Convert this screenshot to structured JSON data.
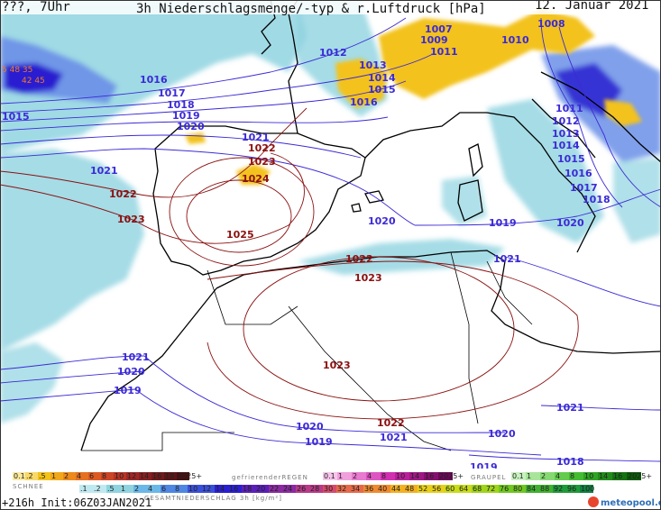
{
  "header": {
    "left": "???, 7Uhr",
    "title": "3h Niederschlagsmenge/-typ & r.Luftdruck [hPa]",
    "date": "12. Januar 2021"
  },
  "colors": {
    "precip_light": "#8fd3e0",
    "precip_blue": "#6a8fe8",
    "precip_dark": "#2a1fd0",
    "snow_yellow": "#f3c21b",
    "isobar_low": "#3b2ad6",
    "isobar_high": "#8b1010",
    "coast": "#000000"
  },
  "isobars": [
    {
      "v": "1012",
      "t": "lo"
    },
    {
      "v": "1013",
      "t": "lo"
    },
    {
      "v": "1014",
      "t": "lo"
    },
    {
      "v": "1015",
      "t": "lo"
    },
    {
      "v": "1016",
      "t": "lo"
    },
    {
      "v": "1007",
      "t": "lo"
    },
    {
      "v": "1009",
      "t": "lo"
    },
    {
      "v": "1011",
      "t": "lo"
    },
    {
      "v": "1010",
      "t": "lo"
    },
    {
      "v": "1008",
      "t": "lo"
    },
    {
      "v": "1016",
      "t": "lo"
    },
    {
      "v": "1017",
      "t": "lo"
    },
    {
      "v": "1018",
      "t": "lo"
    },
    {
      "v": "1019",
      "t": "lo"
    },
    {
      "v": "1020",
      "t": "lo"
    },
    {
      "v": "1015",
      "t": "lo"
    },
    {
      "v": "1021",
      "t": "lo"
    },
    {
      "v": "1022",
      "t": "hi"
    },
    {
      "v": "1023",
      "t": "hi"
    },
    {
      "v": "1024",
      "t": "hi"
    },
    {
      "v": "1025",
      "t": "hi"
    },
    {
      "v": "1021",
      "t": "lo"
    },
    {
      "v": "1022",
      "t": "hi"
    },
    {
      "v": "1023",
      "t": "hi"
    },
    {
      "v": "1020",
      "t": "lo"
    },
    {
      "v": "1019",
      "t": "lo"
    },
    {
      "v": "1020",
      "t": "lo"
    },
    {
      "v": "1021",
      "t": "lo"
    },
    {
      "v": "1011",
      "t": "lo"
    },
    {
      "v": "1012",
      "t": "lo"
    },
    {
      "v": "1013",
      "t": "lo"
    },
    {
      "v": "1014",
      "t": "lo"
    },
    {
      "v": "1015",
      "t": "lo"
    },
    {
      "v": "1016",
      "t": "lo"
    },
    {
      "v": "1017",
      "t": "lo"
    },
    {
      "v": "1018",
      "t": "lo"
    },
    {
      "v": "1022",
      "t": "hi"
    },
    {
      "v": "1023",
      "t": "hi"
    },
    {
      "v": "1021",
      "t": "lo"
    },
    {
      "v": "1020",
      "t": "lo"
    },
    {
      "v": "1019",
      "t": "lo"
    },
    {
      "v": "1023",
      "t": "hi"
    },
    {
      "v": "1020",
      "t": "lo"
    },
    {
      "v": "1019",
      "t": "lo"
    },
    {
      "v": "1022",
      "t": "hi"
    },
    {
      "v": "1021",
      "t": "lo"
    },
    {
      "v": "1020",
      "t": "lo"
    },
    {
      "v": "1021",
      "t": "lo"
    },
    {
      "v": "1018",
      "t": "lo"
    },
    {
      "v": "1019",
      "t": "lo"
    }
  ],
  "max_labels": [
    "5 48 35",
    "42 45"
  ],
  "legend": {
    "schnee_label": "SCHNEE",
    "schnee_values": [
      "0.1",
      ".2",
      ".5",
      "1",
      "2",
      "4",
      "6",
      "8",
      "10",
      "12",
      "14",
      "16",
      "18",
      "2025+"
    ],
    "regen_label": "gefrierenderREGEN",
    "regen_values": [
      "0.1",
      "1",
      "2",
      "4",
      "8",
      "10",
      "14",
      "16",
      "2025+"
    ],
    "graupel_label": "GRAUPEL",
    "graupel_values": [
      "0.1",
      "1",
      "2",
      "4",
      "8",
      "10",
      "14",
      "16",
      "2025+"
    ],
    "gesamt_values": [
      ".1",
      ".2",
      ".5",
      "1",
      "2",
      "4",
      "6",
      "8",
      "10",
      "12",
      "14",
      "16",
      "18",
      "20",
      "22",
      "24",
      "26",
      "28",
      "30",
      "32",
      "34",
      "36",
      "40",
      "44",
      "48",
      "52",
      "56",
      "60",
      "64",
      "68",
      "72",
      "76",
      "80",
      "84",
      "88",
      "92",
      "96",
      "100"
    ],
    "gesamt_label": "GESAMTNIEDERSCHLAG 3h [kg/m²]"
  },
  "footer": {
    "run": "+216h Init:06Z03JAN2021",
    "brand": "meteopool.org"
  }
}
